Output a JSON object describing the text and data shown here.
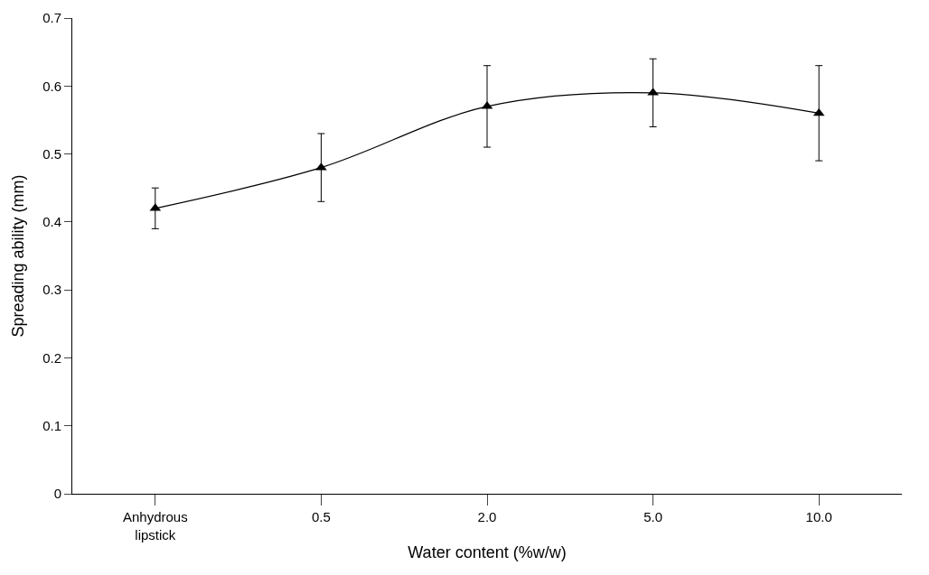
{
  "chart_data": {
    "type": "line",
    "xlabel": "Water content (%w/w)",
    "ylabel": "Spreading ability (mm)",
    "categories": [
      "Anhydrous\nlipstick",
      "0.5",
      "2.0",
      "5.0",
      "10.0"
    ],
    "series": [
      {
        "color": "#000000",
        "values": [
          0.42,
          0.48,
          0.57,
          0.59,
          0.56
        ],
        "errors": [
          0.03,
          0.05,
          0.06,
          0.05,
          0.07
        ]
      }
    ],
    "ylim": [
      0,
      0.7
    ],
    "yticks": [
      0,
      0.1,
      0.2,
      0.3,
      0.4,
      0.5,
      0.6,
      0.7
    ],
    "legend": false,
    "marker": "triangle",
    "line_style": "solid"
  }
}
